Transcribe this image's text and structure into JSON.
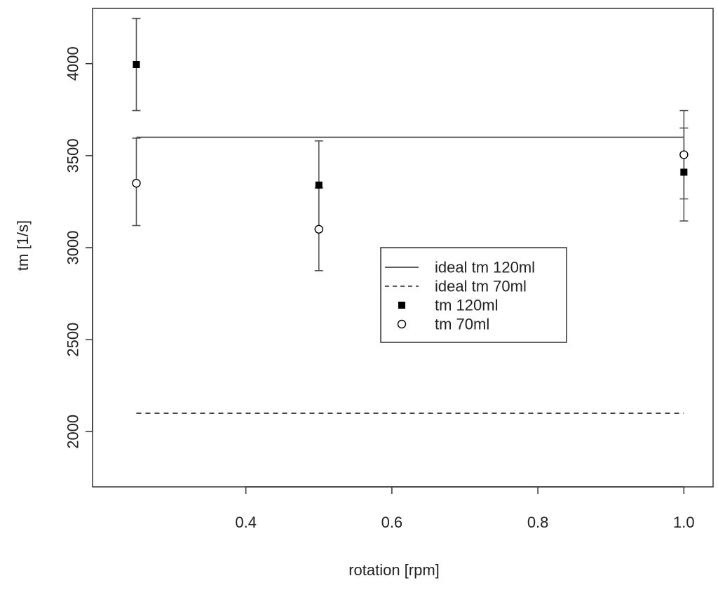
{
  "chart_data": {
    "type": "scatter",
    "title": "",
    "xlabel": "rotation [rpm]",
    "ylabel": "tm [1/s]",
    "xlim": [
      0.19,
      1.04
    ],
    "ylim": [
      1700,
      4300
    ],
    "x_ticks": [
      "0.4",
      "0.6",
      "0.8",
      "1.0"
    ],
    "y_ticks": [
      "2000",
      "2500",
      "3000",
      "3500",
      "4000"
    ],
    "grid": false,
    "legend_position": "center-right",
    "series": [
      {
        "name": "ideal tm 120ml",
        "kind": "line",
        "style": "solid",
        "points": [
          {
            "x": 0.25,
            "y": 3600
          },
          {
            "x": 1.0,
            "y": 3600
          }
        ]
      },
      {
        "name": "ideal tm 70ml",
        "kind": "line",
        "style": "dashed",
        "points": [
          {
            "x": 0.25,
            "y": 2100
          },
          {
            "x": 1.0,
            "y": 2100
          }
        ]
      },
      {
        "name": "tm 120ml",
        "kind": "points",
        "marker": "filled-square",
        "points": [
          {
            "x": 0.25,
            "y": 3995,
            "err_low": 3745,
            "err_high": 4245
          },
          {
            "x": 0.5,
            "y": 3340,
            "err_low": 3100,
            "err_high": 3580
          },
          {
            "x": 1.0,
            "y": 3410,
            "err_low": 3145,
            "err_high": 3650
          }
        ]
      },
      {
        "name": "tm 70ml",
        "kind": "points",
        "marker": "open-circle",
        "points": [
          {
            "x": 0.25,
            "y": 3350,
            "err_low": 3120,
            "err_high": 3595
          },
          {
            "x": 0.5,
            "y": 3100,
            "err_low": 2875,
            "err_high": 3325
          },
          {
            "x": 1.0,
            "y": 3505,
            "err_low": 3265,
            "err_high": 3745
          }
        ]
      }
    ]
  }
}
